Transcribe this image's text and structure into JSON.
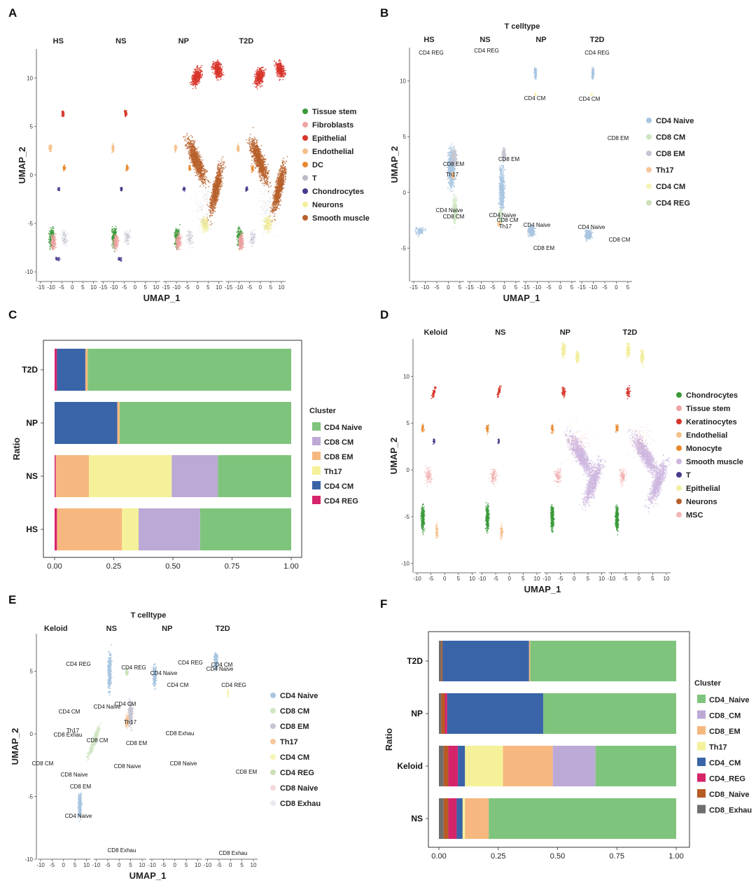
{
  "chart_data": [
    {
      "id": "A",
      "panel_label": "A",
      "type": "scatter",
      "title": "",
      "xlabel": "UMAP_1",
      "ylabel": "UMAP_2",
      "facets": [
        "HS",
        "NS",
        "NP",
        "T2D"
      ],
      "xticks": [
        "-15",
        "-10",
        "-5",
        "0",
        "5",
        "10"
      ],
      "yticks": [
        "10",
        "5",
        "0",
        "-5",
        "-10"
      ],
      "ylim": [
        -11,
        13
      ],
      "legend_position": "right",
      "legend": [
        {
          "name": "Tissue stem",
          "color": "#3a9a3a"
        },
        {
          "name": "Fibroblasts",
          "color": "#f0a3a3"
        },
        {
          "name": "Epithelial",
          "color": "#d8352a"
        },
        {
          "name": "Endothelial",
          "color": "#f5c08a"
        },
        {
          "name": "DC",
          "color": "#e8882e"
        },
        {
          "name": "T",
          "color": "#b9b9c9"
        },
        {
          "name": "Chondrocytes",
          "color": "#4b3a8c"
        },
        {
          "name": "Neurons",
          "color": "#f3ef9e"
        },
        {
          "name": "Smooth muscle",
          "color": "#b8602b"
        }
      ]
    },
    {
      "id": "B",
      "panel_label": "B",
      "type": "scatter",
      "title": "T celltype",
      "xlabel": "UMAP_1",
      "ylabel": "UMAP_2",
      "facets": [
        "HS",
        "NS",
        "NP",
        "T2D"
      ],
      "xticks": [
        "-15",
        "-10",
        "-5",
        "0",
        "5"
      ],
      "yticks": [
        "10",
        "5",
        "0",
        "-5"
      ],
      "ylim": [
        -8,
        13
      ],
      "legend_position": "right",
      "legend": [
        {
          "name": "CD4 Naive",
          "color": "#a9c6e1"
        },
        {
          "name": "CD8 CM",
          "color": "#cfe6c4"
        },
        {
          "name": "CD8 EM",
          "color": "#c5c5d3"
        },
        {
          "name": "Th17",
          "color": "#f7c79b"
        },
        {
          "name": "CD4 CM",
          "color": "#f7f3b4"
        },
        {
          "name": "CD4 REG",
          "color": "#cde0b8"
        }
      ],
      "annotations": [
        "CD4 REG",
        "CD4 REG",
        "CD4 REG",
        "CD4 CM",
        "CD4 CM",
        "CD8 EM",
        "CD8 EM",
        "Th17",
        "CD8 EM",
        "CD4 Naive",
        "CD8 CM",
        "CD4 Naive",
        "CD8 CM",
        "Th17",
        "CD4 Naive",
        "CD8 EM",
        "CD4 Naive",
        "CD8 CM"
      ]
    },
    {
      "id": "C",
      "panel_label": "C",
      "type": "bar",
      "orientation": "horizontal",
      "stacked": true,
      "ylabel": "Ratio",
      "categories": [
        "T2D",
        "NP",
        "NS",
        "HS"
      ],
      "xticks": [
        "0.00",
        "0.25",
        "0.50",
        "0.75",
        "1.00"
      ],
      "xlim": [
        0,
        1
      ],
      "legend_title": "Cluster",
      "legend_position": "right",
      "series": [
        {
          "name": "CD4 REG",
          "color": "#d6246b",
          "values": [
            0.01,
            0.0,
            0.005,
            0.01
          ]
        },
        {
          "name": "CD4 CM",
          "color": "#3a64a8",
          "values": [
            0.12,
            0.265,
            0.0,
            0.0
          ]
        },
        {
          "name": "CD8 EM",
          "color": "#f6b87f",
          "values": [
            0.01,
            0.01,
            0.14,
            0.275
          ]
        },
        {
          "name": "Th17",
          "color": "#f5f19a",
          "values": [
            0.0,
            0.0,
            0.35,
            0.07
          ]
        },
        {
          "name": "CD8 CM",
          "color": "#bca9d6",
          "values": [
            0.0,
            0.0,
            0.195,
            0.26
          ]
        },
        {
          "name": "CD4 Naive",
          "color": "#7fc47c",
          "values": [
            0.86,
            0.725,
            0.31,
            0.385
          ]
        }
      ],
      "legend_order": [
        "CD4 Naive",
        "CD8 CM",
        "CD8 EM",
        "Th17",
        "CD4 CM",
        "CD4 REG"
      ]
    },
    {
      "id": "D",
      "panel_label": "D",
      "type": "scatter",
      "title": "",
      "xlabel": "UMAP_1",
      "ylabel": "UMAP_2",
      "facets": [
        "Keloid",
        "NS",
        "NP",
        "T2D"
      ],
      "xticks": [
        "-10",
        "-5",
        "0",
        "5",
        "10"
      ],
      "yticks": [
        "10",
        "5",
        "0",
        "-5",
        "-10"
      ],
      "ylim": [
        -11,
        14
      ],
      "legend_position": "right",
      "legend": [
        {
          "name": "Chondrocytes",
          "color": "#3a9a3a"
        },
        {
          "name": "Tissue stem",
          "color": "#f0a3a3"
        },
        {
          "name": "Keratinocytes",
          "color": "#d8352a"
        },
        {
          "name": "Endothelial",
          "color": "#f5c08a"
        },
        {
          "name": "Monocyte",
          "color": "#e8882e"
        },
        {
          "name": "Smooth muscle",
          "color": "#cdb7e0"
        },
        {
          "name": "T",
          "color": "#4b3a8c"
        },
        {
          "name": "Epithelial",
          "color": "#f3ef9e"
        },
        {
          "name": "Neurons",
          "color": "#b8602b"
        },
        {
          "name": "MSC",
          "color": "#f2b8b8"
        }
      ]
    },
    {
      "id": "E",
      "panel_label": "E",
      "type": "scatter",
      "title": "T celltype",
      "xlabel": "UMAP_1",
      "ylabel": "UMAP_2",
      "facets": [
        "Keloid",
        "NS",
        "NP",
        "T2D"
      ],
      "xticks": [
        "-10",
        "-5",
        "0",
        "5",
        "10"
      ],
      "yticks": [
        "5",
        "0",
        "-5",
        "-10"
      ],
      "ylim": [
        -10,
        8
      ],
      "legend_position": "right",
      "legend": [
        {
          "name": "CD4 Naive",
          "color": "#a9c6e1"
        },
        {
          "name": "CD8 CM",
          "color": "#cfe6c4"
        },
        {
          "name": "CD8 EM",
          "color": "#c5c5d3"
        },
        {
          "name": "Th17",
          "color": "#f7c79b"
        },
        {
          "name": "CD4 CM",
          "color": "#f7f3b4"
        },
        {
          "name": "CD4 REG",
          "color": "#cde0b8"
        },
        {
          "name": "CD8  Naive",
          "color": "#f6d9da"
        },
        {
          "name": "CD8 Exhau",
          "color": "#eaeaf0"
        }
      ],
      "annotations": [
        "CD4 REG",
        "CD4 CM",
        "Th17",
        "CD8 Exhau",
        "CD8 CM",
        "CD8 Naive",
        "CD8 EM",
        "CD4 Naive",
        "CD8 Exhau",
        "CD4 Naive",
        "CD8 CM",
        "CD4 REG",
        "CD4 CM",
        "Th17",
        "CD8 EM",
        "CD8 Naive",
        "CD4 Naive",
        "CD4 CM",
        "CD4 REG",
        "CD8 Exhau",
        "CD8 Naive",
        "CD4 Naive",
        "CD4 REG",
        "CD4 CM",
        "CD8 EM",
        "CD8 Exhau"
      ]
    },
    {
      "id": "F",
      "panel_label": "F",
      "type": "bar",
      "orientation": "horizontal",
      "stacked": true,
      "ylabel": "Ratio",
      "categories": [
        "T2D",
        "NP",
        "Keloid",
        "NS"
      ],
      "xticks": [
        "0.00",
        "0.25",
        "0.50",
        "0.75",
        "1.00"
      ],
      "xlim": [
        0,
        1
      ],
      "legend_title": "Cluster",
      "legend_position": "right",
      "series": [
        {
          "name": "CD8_Exhau",
          "color": "#6e6e6e",
          "values": [
            0.01,
            0.01,
            0.02,
            0.02
          ]
        },
        {
          "name": "CD8_Naive",
          "color": "#b85b25",
          "values": [
            0.005,
            0.015,
            0.02,
            0.02
          ]
        },
        {
          "name": "CD4_REG",
          "color": "#d6246b",
          "values": [
            0.0,
            0.01,
            0.04,
            0.035
          ]
        },
        {
          "name": "CD4_CM",
          "color": "#3a64a8",
          "values": [
            0.365,
            0.405,
            0.03,
            0.025
          ]
        },
        {
          "name": "Th17",
          "color": "#f5f19a",
          "values": [
            0.0,
            0.0,
            0.16,
            0.01
          ]
        },
        {
          "name": "CD8_EM",
          "color": "#f6b87f",
          "values": [
            0.005,
            0.0,
            0.21,
            0.1
          ]
        },
        {
          "name": "CD8_CM",
          "color": "#bca9d6",
          "values": [
            0.0,
            0.0,
            0.18,
            0.0
          ]
        },
        {
          "name": "CD4_Naive",
          "color": "#7fc47c",
          "values": [
            0.615,
            0.56,
            0.34,
            0.79
          ]
        }
      ],
      "legend_order": [
        "CD4_Naive",
        "CD8_CM",
        "CD8_EM",
        "Th17",
        "CD4_CM",
        "CD4_REG",
        "CD8_Naive",
        "CD8_Exhau"
      ]
    }
  ]
}
